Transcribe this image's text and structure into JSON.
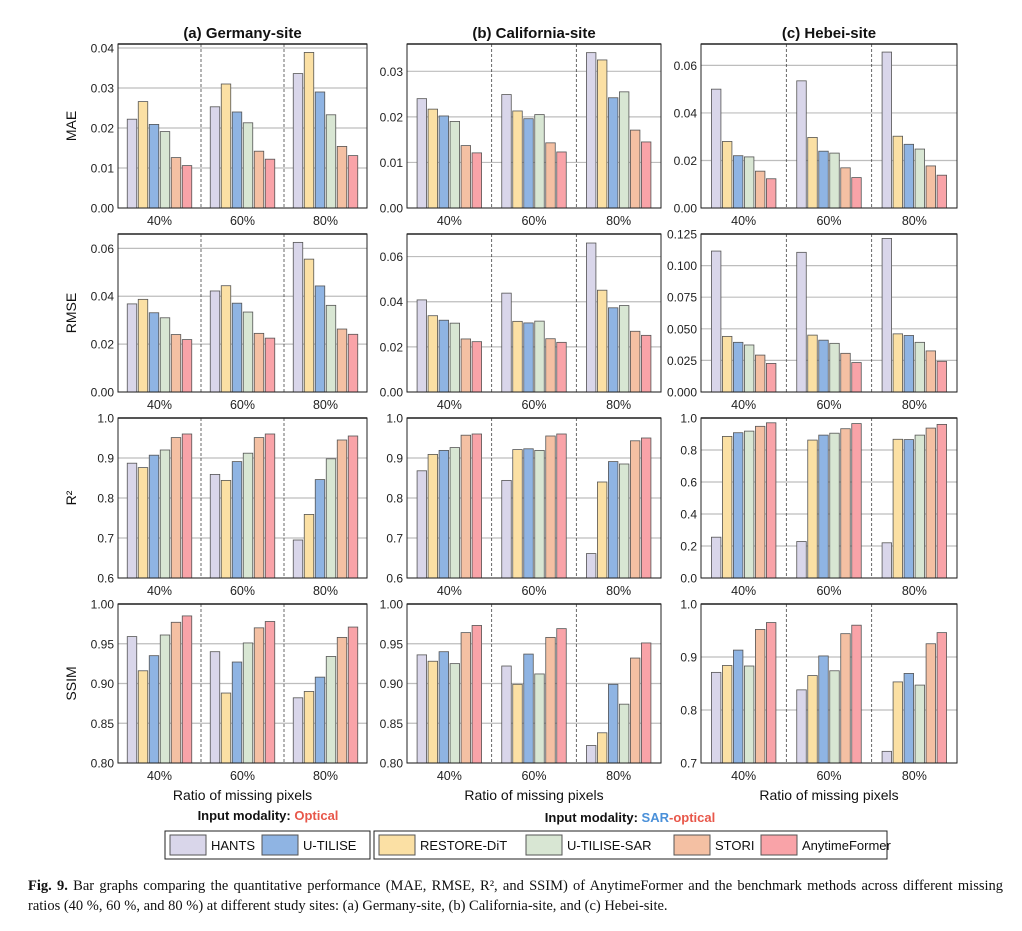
{
  "chart_data": {
    "type": "bar",
    "categories": [
      "40%",
      "60%",
      "80%"
    ],
    "xlabel": "Ratio of missing pixels",
    "methods": [
      "HANTS",
      "RESTORE-DiT",
      "U-TILISE",
      "U-TILISE-SAR",
      "STORI",
      "AnytimeFormer"
    ],
    "colors": {
      "HANTS": "#d9d6ea",
      "RESTORE-DiT": "#fbe0a4",
      "U-TILISE": "#8fb4e3",
      "U-TILISE-SAR": "#d8e6d3",
      "STORI": "#f4c0a3",
      "AnytimeFormer": "#f9a3a8"
    },
    "sites": [
      "(a) Germany-site",
      "(b) California-site",
      "(c) Hebei-site"
    ],
    "metrics": [
      "MAE",
      "RMSE",
      "R²",
      "SSIM"
    ],
    "panels": [
      {
        "site": "(a) Germany-site",
        "metric": "MAE",
        "ylim": [
          0,
          0.041
        ],
        "ticks": [
          "0.00",
          "0.01",
          "0.02",
          "0.03",
          "0.04"
        ],
        "values": [
          [
            0.0222,
            0.0266,
            0.0209,
            0.0191,
            0.0126,
            0.0106
          ],
          [
            0.0253,
            0.031,
            0.024,
            0.0213,
            0.0142,
            0.0122
          ],
          [
            0.0336,
            0.0389,
            0.029,
            0.0233,
            0.0154,
            0.0131
          ]
        ]
      },
      {
        "site": "(b) California-site",
        "metric": "MAE",
        "ylim": [
          0,
          0.036
        ],
        "ticks": [
          "0.00",
          "0.01",
          "0.02",
          "0.03"
        ],
        "values": [
          [
            0.024,
            0.0217,
            0.0202,
            0.019,
            0.0137,
            0.0121
          ],
          [
            0.0249,
            0.0213,
            0.0196,
            0.0205,
            0.0143,
            0.0123
          ],
          [
            0.0341,
            0.0325,
            0.0242,
            0.0255,
            0.0171,
            0.0145
          ]
        ]
      },
      {
        "site": "(c) Hebei-site",
        "metric": "MAE",
        "ylim": [
          0,
          0.069
        ],
        "ticks": [
          "0.00",
          "0.02",
          "0.04",
          "0.06"
        ],
        "values": [
          [
            0.05,
            0.028,
            0.022,
            0.0215,
            0.0155,
            0.0123
          ],
          [
            0.0535,
            0.0297,
            0.0239,
            0.0231,
            0.0169,
            0.0128
          ],
          [
            0.0656,
            0.0302,
            0.0268,
            0.0248,
            0.0177,
            0.0138
          ]
        ]
      },
      {
        "site": "(a) Germany-site",
        "metric": "RMSE",
        "ylim": [
          0,
          0.066
        ],
        "ticks": [
          "0.00",
          "0.02",
          "0.04",
          "0.06"
        ],
        "values": [
          [
            0.0368,
            0.0387,
            0.0331,
            0.031,
            0.024,
            0.0219
          ],
          [
            0.0422,
            0.0444,
            0.0371,
            0.0334,
            0.0245,
            0.0225
          ],
          [
            0.0625,
            0.0555,
            0.0443,
            0.0362,
            0.0263,
            0.0241
          ]
        ]
      },
      {
        "site": "(b) California-site",
        "metric": "RMSE",
        "ylim": [
          0,
          0.07
        ],
        "ticks": [
          "0.00",
          "0.02",
          "0.04",
          "0.06"
        ],
        "values": [
          [
            0.0408,
            0.0338,
            0.0318,
            0.0305,
            0.0235,
            0.0223
          ],
          [
            0.0438,
            0.0313,
            0.0306,
            0.0314,
            0.0236,
            0.022
          ],
          [
            0.066,
            0.0451,
            0.0373,
            0.0383,
            0.0269,
            0.0251
          ]
        ]
      },
      {
        "site": "(c) Hebei-site",
        "metric": "RMSE",
        "ylim": [
          0,
          0.125
        ],
        "ticks": [
          "0.000",
          "0.025",
          "0.050",
          "0.075",
          "0.100",
          "0.125"
        ],
        "values": [
          [
            0.1115,
            0.044,
            0.0393,
            0.0372,
            0.0292,
            0.0226
          ],
          [
            0.1105,
            0.045,
            0.041,
            0.0385,
            0.0306,
            0.0233
          ],
          [
            0.1215,
            0.046,
            0.0447,
            0.0393,
            0.0325,
            0.0243
          ]
        ]
      },
      {
        "site": "(a) Germany-site",
        "metric": "R²",
        "ylim": [
          0.6,
          1.0
        ],
        "ticks": [
          "0.6",
          "0.7",
          "0.8",
          "0.9",
          "1.0"
        ],
        "values": [
          [
            0.887,
            0.876,
            0.907,
            0.92,
            0.951,
            0.96
          ],
          [
            0.859,
            0.844,
            0.891,
            0.912,
            0.951,
            0.96
          ],
          [
            0.695,
            0.759,
            0.846,
            0.898,
            0.945,
            0.955
          ]
        ]
      },
      {
        "site": "(b) California-site",
        "metric": "R²",
        "ylim": [
          0.6,
          1.0
        ],
        "ticks": [
          "0.6",
          "0.7",
          "0.8",
          "0.9",
          "1.0"
        ],
        "values": [
          [
            0.868,
            0.909,
            0.919,
            0.926,
            0.957,
            0.96
          ],
          [
            0.844,
            0.921,
            0.923,
            0.919,
            0.955,
            0.96
          ],
          [
            0.661,
            0.84,
            0.891,
            0.885,
            0.943,
            0.95
          ]
        ]
      },
      {
        "site": "(c) Hebei-site",
        "metric": "R²",
        "ylim": [
          0,
          1.0
        ],
        "ticks": [
          "0.0",
          "0.2",
          "0.4",
          "0.6",
          "0.8",
          "1.0"
        ],
        "values": [
          [
            0.255,
            0.885,
            0.908,
            0.918,
            0.948,
            0.97
          ],
          [
            0.228,
            0.862,
            0.893,
            0.905,
            0.933,
            0.965
          ],
          [
            0.22,
            0.867,
            0.865,
            0.893,
            0.937,
            0.96
          ]
        ]
      },
      {
        "site": "(a) Germany-site",
        "metric": "SSIM",
        "ylim": [
          0.8,
          1.0
        ],
        "ticks": [
          "0.80",
          "0.85",
          "0.90",
          "0.95",
          "1.00"
        ],
        "values": [
          [
            0.959,
            0.916,
            0.935,
            0.961,
            0.977,
            0.985
          ],
          [
            0.94,
            0.888,
            0.927,
            0.951,
            0.97,
            0.978
          ],
          [
            0.882,
            0.89,
            0.908,
            0.934,
            0.958,
            0.971
          ]
        ]
      },
      {
        "site": "(b) California-site",
        "metric": "SSIM",
        "ylim": [
          0.8,
          1.0
        ],
        "ticks": [
          "0.80",
          "0.85",
          "0.90",
          "0.95",
          "1.00"
        ],
        "values": [
          [
            0.936,
            0.928,
            0.94,
            0.925,
            0.964,
            0.973
          ],
          [
            0.922,
            0.899,
            0.937,
            0.912,
            0.958,
            0.969
          ],
          [
            0.822,
            0.838,
            0.899,
            0.874,
            0.932,
            0.951
          ]
        ]
      },
      {
        "site": "(c) Hebei-site",
        "metric": "SSIM",
        "ylim": [
          0.7,
          1.0
        ],
        "ticks": [
          "0.7",
          "0.8",
          "0.9",
          "1.0"
        ],
        "values": [
          [
            0.871,
            0.884,
            0.913,
            0.883,
            0.952,
            0.965
          ],
          [
            0.838,
            0.865,
            0.902,
            0.874,
            0.944,
            0.96
          ],
          [
            0.722,
            0.853,
            0.869,
            0.847,
            0.925,
            0.946
          ]
        ]
      }
    ]
  },
  "modality": {
    "prefix": "Input modality: ",
    "optical": "Optical",
    "sar": "SAR",
    "sar_optical_suffix": "-optical",
    "colors": {
      "red": "#e8574a",
      "blue": "#4a90d9"
    }
  },
  "legend": {
    "group_optical": [
      "HANTS",
      "U-TILISE"
    ],
    "group_sar_optical": [
      "RESTORE-DiT",
      "U-TILISE-SAR",
      "STORI",
      "AnytimeFormer"
    ]
  },
  "caption": {
    "label": "Fig. 9.",
    "text": "Bar graphs comparing the quantitative performance (MAE, RMSE, R², and SSIM) of AnytimeFormer and the benchmark methods across different missing ratios (40 %, 60 %, and 80 %) at different study sites: (a) Germany-site, (b) California-site, and (c) Hebei-site."
  }
}
